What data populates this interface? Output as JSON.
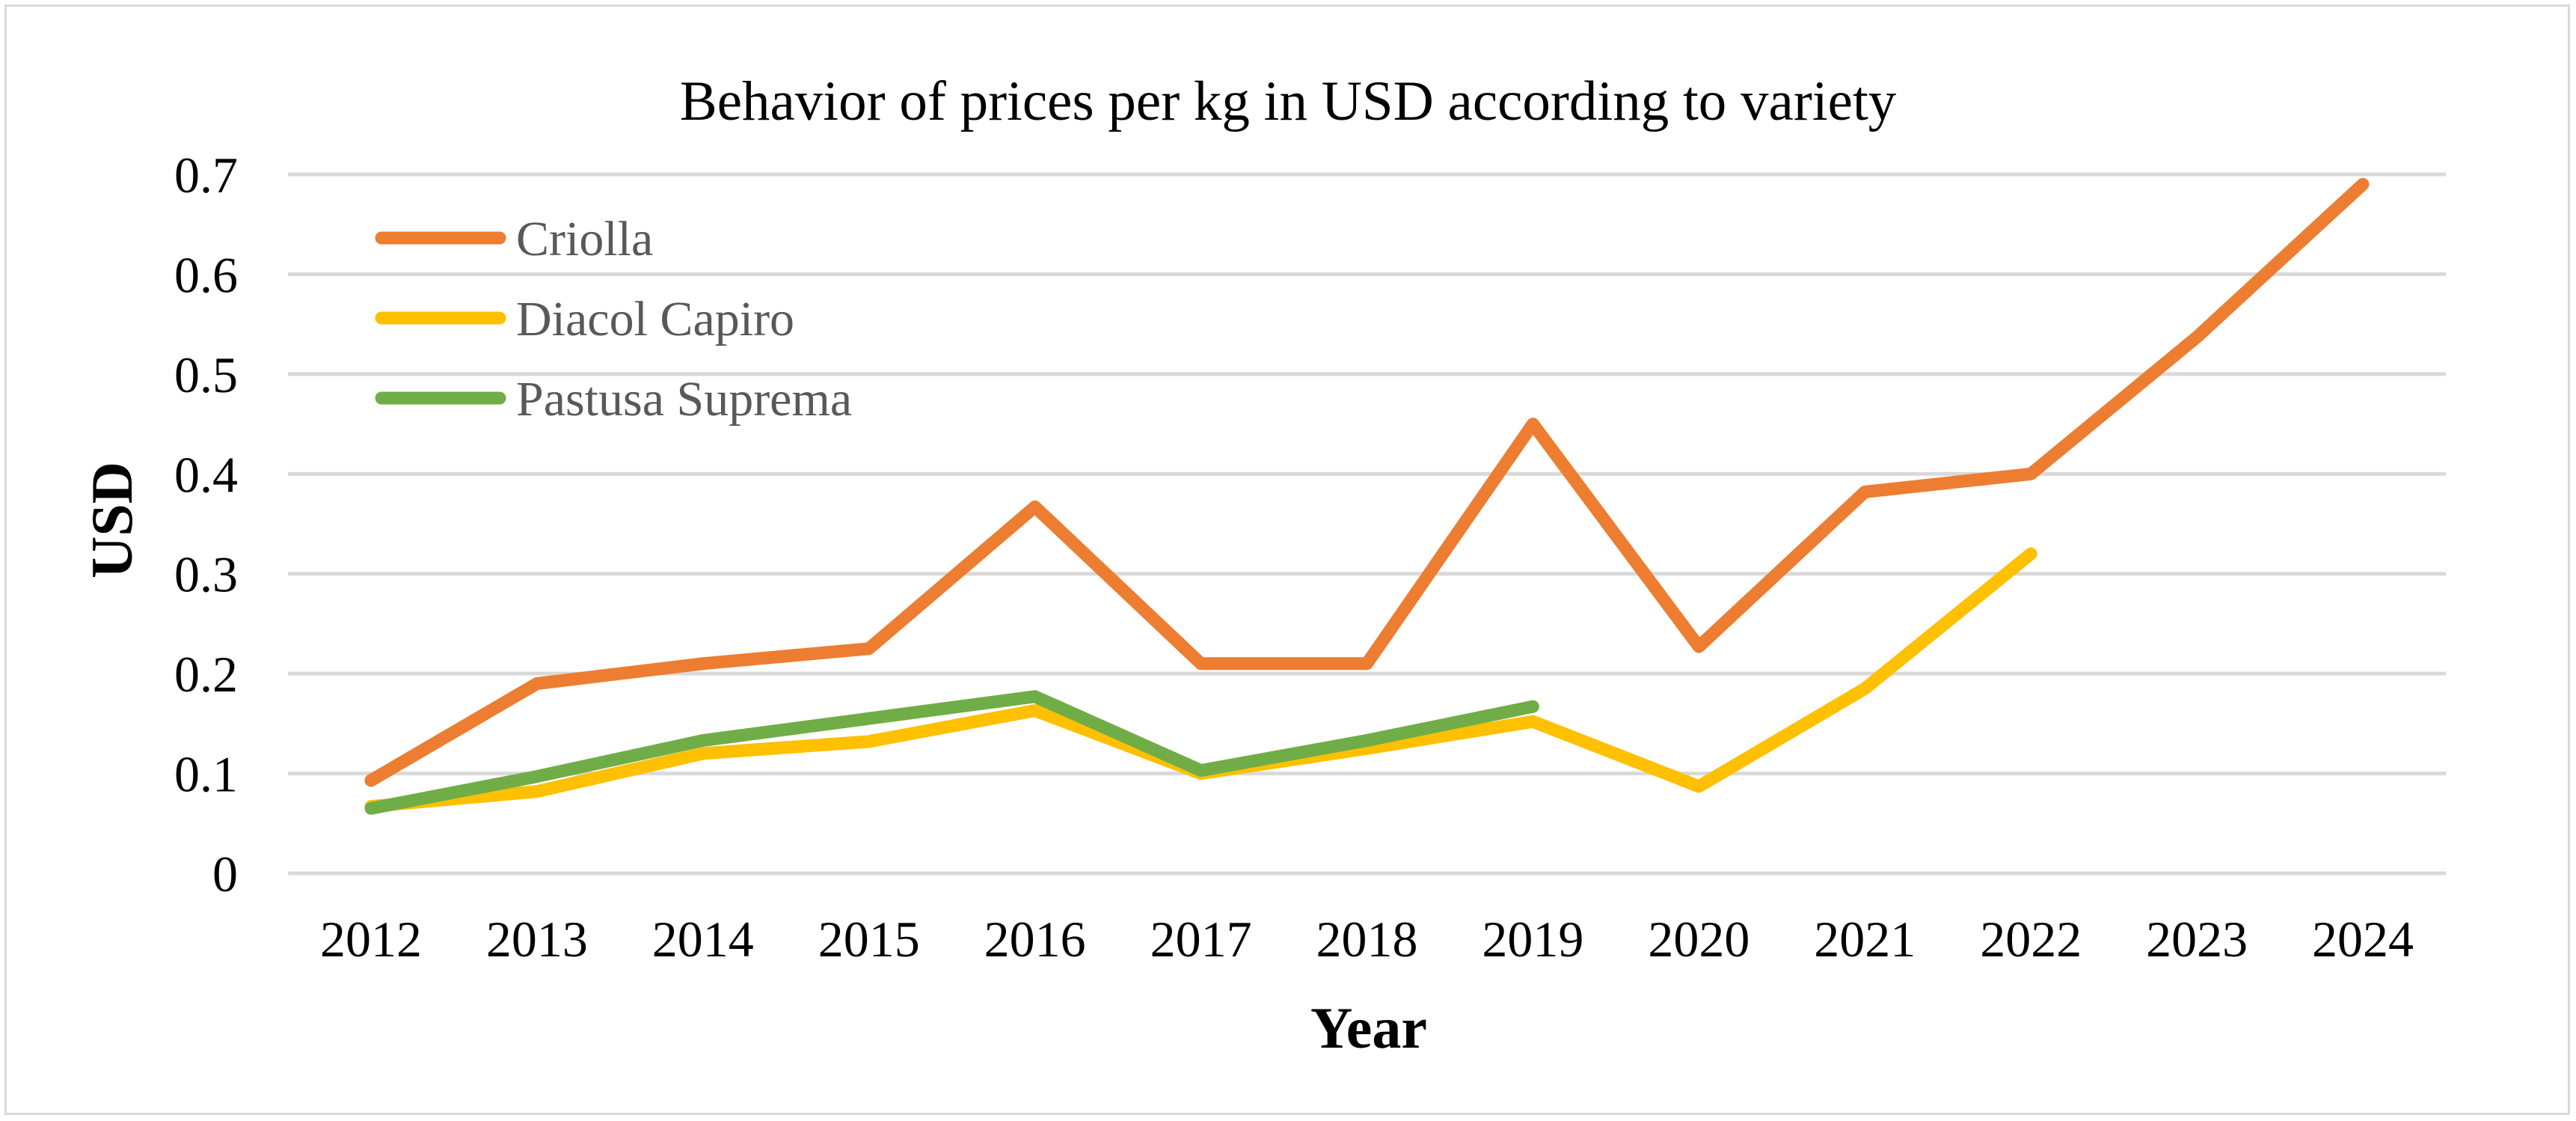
{
  "chart_data": {
    "type": "line",
    "title": "Behavior of prices per kg in USD according to variety",
    "xlabel": "Year",
    "ylabel": "USD",
    "categories": [
      "2012",
      "2013",
      "2014",
      "2015",
      "2016",
      "2017",
      "2018",
      "2019",
      "2020",
      "2021",
      "2022",
      "2023",
      "2024"
    ],
    "ylim": [
      0,
      0.7
    ],
    "yticks": [
      0,
      0.1,
      0.2,
      0.3,
      0.4,
      0.5,
      0.6,
      0.7
    ],
    "ytick_labels": [
      "0",
      "0.1",
      "0.2",
      "0.3",
      "0.4",
      "0.5",
      "0.6",
      "0.7"
    ],
    "grid": true,
    "legend_position": "top-left",
    "series": [
      {
        "name": "Criolla",
        "color": "#ed7d31",
        "values": [
          0.093,
          0.19,
          0.21,
          0.225,
          0.367,
          0.21,
          0.21,
          0.45,
          0.227,
          0.382,
          0.4,
          0.537,
          0.69
        ]
      },
      {
        "name": "Diacol Capiro",
        "color": "#ffc000",
        "values": [
          0.067,
          0.082,
          0.12,
          0.132,
          0.163,
          0.1,
          0.125,
          0.152,
          0.087,
          0.185,
          0.32,
          null,
          null
        ]
      },
      {
        "name": "Pastusa Suprema",
        "color": "#70ad47",
        "values": [
          0.065,
          0.097,
          0.133,
          0.155,
          0.177,
          0.103,
          0.133,
          0.167,
          null,
          null,
          null,
          null,
          null
        ]
      }
    ]
  }
}
